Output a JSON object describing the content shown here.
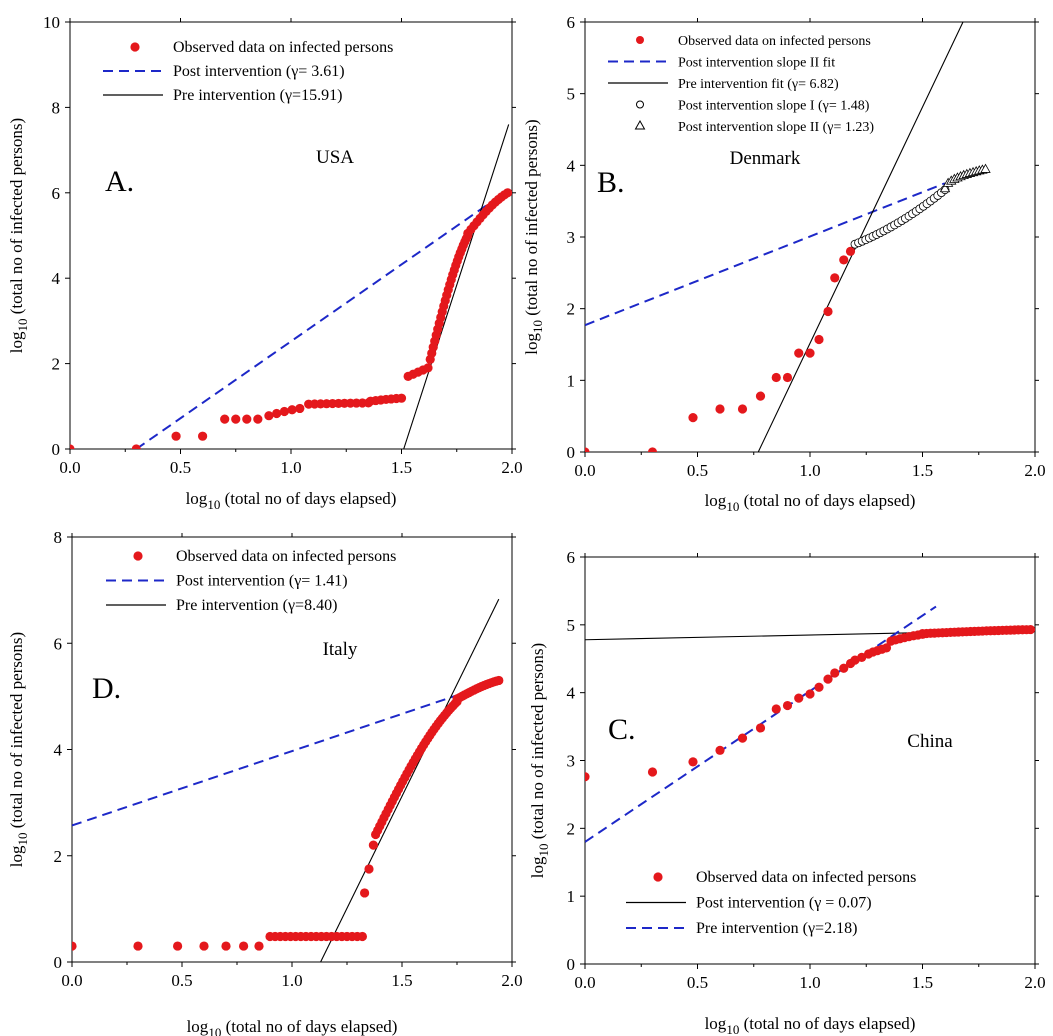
{
  "chart_data": [
    {
      "id": "A",
      "type": "scatter",
      "panel_letter": "A.",
      "country": "USA",
      "xlabel_log": "log",
      "xlabel_sub": "10",
      "xlabel_rest": " (total no of days elapsed)",
      "ylabel_log": "log",
      "ylabel_sub": "10",
      "ylabel_rest": " (total no of infected persons)",
      "xlim": [
        0,
        2
      ],
      "ylim": [
        0,
        10
      ],
      "xticks": [
        0,
        0.5,
        1,
        1.5,
        2
      ],
      "xtick_labels": [
        "0.0",
        "0.5",
        "1.0",
        "1.5",
        "2.0"
      ],
      "yticks": [
        0,
        2,
        4,
        6,
        8,
        10
      ],
      "ytick_labels": [
        "0",
        "2",
        "4",
        "6",
        "8",
        "10"
      ],
      "legend_position": "top-left",
      "legend": [
        {
          "kind": "dot",
          "label": "Observed data on infected persons"
        },
        {
          "kind": "dash",
          "label": "Post intervention (γ= 3.61)"
        },
        {
          "kind": "solid",
          "label": "Pre intervention (γ=15.91)"
        }
      ],
      "lines": [
        {
          "name": "Post intervention",
          "style": "dash",
          "x": [
            0.3,
            1.98
          ],
          "y": [
            0,
            6.05
          ]
        },
        {
          "name": "Pre intervention",
          "style": "solid",
          "x": [
            1.51,
            1.985
          ],
          "y": [
            0,
            7.6
          ]
        }
      ],
      "segments": [
        {
          "x0": 0.48,
          "x1": 0.6,
          "y0": 0.3,
          "y1": 0.3,
          "n": 2
        },
        {
          "x0": 0.7,
          "x1": 0.85,
          "y0": 0.7,
          "y1": 0.7,
          "n": 4
        },
        {
          "x0": 0.9,
          "x1": 1.04,
          "y0": 0.78,
          "y1": 0.95,
          "n": 5
        },
        {
          "x0": 1.08,
          "x1": 1.35,
          "y0": 1.05,
          "y1": 1.08,
          "n": 11
        },
        {
          "x0": 1.36,
          "x1": 1.5,
          "y0": 1.12,
          "y1": 1.19,
          "n": 7
        },
        {
          "x0": 1.53,
          "x1": 1.62,
          "y0": 1.7,
          "y1": 1.9,
          "n": 5
        },
        {
          "x0": 1.63,
          "x1": 1.8,
          "y0": 2.1,
          "y1": 5.0,
          "n": 26
        },
        {
          "x0": 1.8,
          "x1": 1.98,
          "y0": 5.05,
          "y1": 6.0,
          "n": 14
        }
      ],
      "points_x": [
        0,
        0.3
      ],
      "points_y": [
        0,
        0
      ]
    },
    {
      "id": "B",
      "type": "scatter",
      "panel_letter": "B.",
      "country": "Denmark",
      "xlabel_log": "log",
      "xlabel_sub": "10",
      "xlabel_rest": " (total no of days elapsed)",
      "ylabel_log": "log",
      "ylabel_sub": "10",
      "ylabel_rest": " (total no of infected persons)",
      "xlim": [
        0,
        2
      ],
      "ylim": [
        0,
        6
      ],
      "xticks": [
        0,
        0.5,
        1,
        1.5,
        2
      ],
      "xtick_labels": [
        "0.0",
        "0.5",
        "1.0",
        "1.5",
        "2.0"
      ],
      "yticks": [
        0,
        1,
        2,
        3,
        4,
        5,
        6
      ],
      "ytick_labels": [
        "0",
        "1",
        "2",
        "3",
        "4",
        "5",
        "6"
      ],
      "legend_position": "top-left",
      "legend": [
        {
          "kind": "dot",
          "label": "Observed data on infected persons"
        },
        {
          "kind": "dash",
          "label": "Post intervention slope II fit"
        },
        {
          "kind": "solid",
          "label": "Pre intervention fit (γ= 6.82)"
        },
        {
          "kind": "circle",
          "label": "Post intervention slope I (γ= 1.48)"
        },
        {
          "kind": "triangle",
          "label": "Post intervention slope II (γ= 1.23)"
        }
      ],
      "lines": [
        {
          "name": "Post intervention slope II fit",
          "style": "dash",
          "x": [
            0,
            1.6
          ],
          "y": [
            1.77,
            3.75
          ]
        },
        {
          "name": "Pre intervention fit",
          "style": "solid",
          "x": [
            0.77,
            1.68
          ],
          "y": [
            0,
            6
          ]
        }
      ],
      "points_x": [
        0,
        0.3,
        0.48,
        0.6,
        0.7,
        0.78,
        0.85,
        0.9,
        0.95,
        1.0,
        1.04,
        1.08,
        1.11,
        1.15,
        1.18
      ],
      "points_y": [
        0,
        0,
        0.48,
        0.6,
        0.6,
        0.78,
        1.04,
        1.04,
        1.38,
        1.38,
        1.57,
        1.96,
        2.43,
        2.68,
        2.8
      ],
      "open_circles": {
        "x0": 1.2,
        "x1": 1.6,
        "y0": 2.9,
        "y1": 3.66,
        "n": 26
      },
      "open_triangles": {
        "x0": 1.6,
        "x1": 1.78,
        "y0": 3.68,
        "y1": 3.95,
        "n": 14
      }
    },
    {
      "id": "D",
      "type": "scatter",
      "panel_letter": "D.",
      "country": "Italy",
      "xlabel_log": "log",
      "xlabel_sub": "10",
      "xlabel_rest": " (total no of days elapsed)",
      "ylabel_log": "log",
      "ylabel_sub": "10",
      "ylabel_rest": " (total no of infected persons)",
      "xlim": [
        0,
        2
      ],
      "ylim": [
        0,
        8
      ],
      "xticks": [
        0,
        0.5,
        1,
        1.5,
        2
      ],
      "xtick_labels": [
        "0.0",
        "0.5",
        "1.0",
        "1.5",
        "2.0"
      ],
      "yticks": [
        0,
        2,
        4,
        6,
        8
      ],
      "ytick_labels": [
        "0",
        "2",
        "4",
        "6",
        "8"
      ],
      "legend_position": "top-left",
      "legend": [
        {
          "kind": "dot",
          "label": "Observed data on infected persons"
        },
        {
          "kind": "dash",
          "label": "Post intervention (γ= 1.41)"
        },
        {
          "kind": "solid",
          "label": "Pre intervention (γ=8.40)"
        }
      ],
      "lines": [
        {
          "name": "Post intervention",
          "style": "dash",
          "x": [
            0,
            1.95
          ],
          "y": [
            2.57,
            5.3
          ]
        },
        {
          "name": "Pre intervention",
          "style": "solid",
          "x": [
            1.13,
            1.94
          ],
          "y": [
            0,
            6.83
          ]
        }
      ],
      "points_x": [
        0,
        0.3,
        0.48,
        0.6,
        0.7,
        0.78,
        0.85
      ],
      "points_y": [
        0.3,
        0.3,
        0.3,
        0.3,
        0.3,
        0.3,
        0.3
      ],
      "segments": [
        {
          "x0": 0.9,
          "x1": 1.32,
          "y0": 0.48,
          "y1": 0.48,
          "n": 19
        },
        {
          "x0": 1.33,
          "x1": 1.37,
          "y0": 1.3,
          "y1": 2.2,
          "n": 3
        },
        {
          "x0": 1.38,
          "x1": 1.75,
          "y0": 2.4,
          "y1": 4.9,
          "n": 40
        },
        {
          "x0": 1.75,
          "x1": 1.94,
          "y0": 4.95,
          "y1": 5.3,
          "n": 18
        }
      ]
    },
    {
      "id": "C",
      "type": "scatter",
      "panel_letter": "C.",
      "country": "China",
      "xlabel_log": "log",
      "xlabel_sub": "10",
      "xlabel_rest": " (total no of days elapsed)",
      "ylabel_log": "log",
      "ylabel_sub": "10",
      "ylabel_rest": " (total no of infected persons)",
      "xlim": [
        0,
        2
      ],
      "ylim": [
        0,
        6
      ],
      "xticks": [
        0,
        0.5,
        1,
        1.5,
        2
      ],
      "xtick_labels": [
        "0.0",
        "0.5",
        "1.0",
        "1.5",
        "2.0"
      ],
      "yticks": [
        0,
        1,
        2,
        3,
        4,
        5,
        6
      ],
      "ytick_labels": [
        "0",
        "1",
        "2",
        "3",
        "4",
        "5",
        "6"
      ],
      "legend_position": "bottom-left",
      "legend": [
        {
          "kind": "dot",
          "label": "Observed data on infected persons"
        },
        {
          "kind": "solid",
          "label": "Post intervention (γ = 0.07)"
        },
        {
          "kind": "dash",
          "label": "Pre intervention (γ=2.18)"
        }
      ],
      "lines": [
        {
          "name": "Post intervention",
          "style": "solid",
          "x": [
            0,
            2
          ],
          "y": [
            4.78,
            4.92
          ]
        },
        {
          "name": "Pre intervention",
          "style": "dash",
          "x": [
            0,
            1.56
          ],
          "y": [
            1.8,
            5.27
          ]
        }
      ],
      "points_x": [
        0,
        0.3,
        0.48,
        0.6,
        0.7,
        0.78,
        0.85,
        0.9,
        0.95,
        1.0,
        1.04,
        1.08,
        1.11,
        1.15,
        1.18,
        1.2,
        1.23,
        1.26,
        1.28,
        1.3,
        1.32,
        1.34
      ],
      "points_y": [
        2.76,
        2.83,
        2.98,
        3.15,
        3.33,
        3.48,
        3.76,
        3.81,
        3.92,
        3.98,
        4.08,
        4.2,
        4.29,
        4.36,
        4.43,
        4.48,
        4.52,
        4.57,
        4.6,
        4.62,
        4.64,
        4.66
      ],
      "segments": [
        {
          "x0": 1.36,
          "x1": 1.5,
          "y0": 4.76,
          "y1": 4.86,
          "n": 8
        },
        {
          "x0": 1.5,
          "x1": 1.98,
          "y0": 4.87,
          "y1": 4.93,
          "n": 28
        }
      ]
    }
  ]
}
